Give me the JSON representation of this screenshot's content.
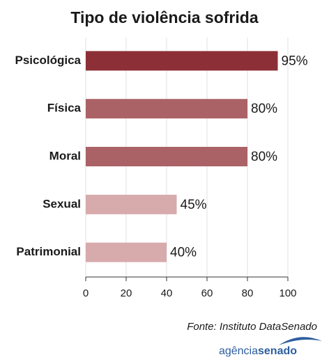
{
  "chart_data": {
    "type": "hbar",
    "title": "Tipo de violência sofrida",
    "categories": [
      "Psicológica",
      "Física",
      "Moral",
      "Sexual",
      "Patrimonial"
    ],
    "values": [
      95,
      80,
      80,
      45,
      40
    ],
    "value_labels": [
      "95%",
      "80%",
      "80%",
      "45%",
      "40%"
    ],
    "colors": [
      "#8c2f36",
      "#ab6267",
      "#ab6267",
      "#d7aaac",
      "#d7aaac"
    ],
    "xlim": [
      0,
      100
    ],
    "xticks": [
      0,
      20,
      40,
      60,
      80,
      100
    ],
    "grid": true,
    "source": "Fonte: Instituto DataSenado",
    "logo": {
      "first": "agência",
      "second": "senado"
    }
  }
}
